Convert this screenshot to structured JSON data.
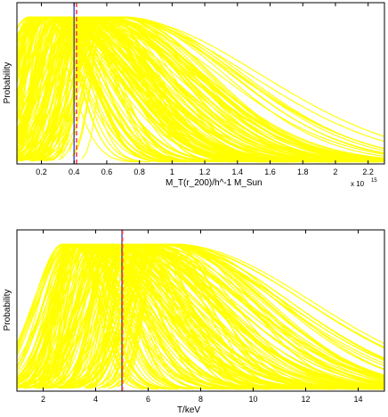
{
  "chart_data": [
    {
      "type": "line",
      "xlabel": "M_T(r_200)/h^-1 M_Sun",
      "ylabel": "Probability",
      "exponent_label": "x 10",
      "exponent_power": "15",
      "xlim": [
        0.05,
        2.3
      ],
      "ylim": [
        0,
        1
      ],
      "xticks": [
        0.2,
        0.4,
        0.6,
        0.8,
        1,
        1.2,
        1.4,
        1.6,
        1.8,
        2,
        2.2
      ],
      "xtick_labels": [
        "0.2",
        "0.4",
        "0.6",
        "0.8",
        "1",
        "1.2",
        "1.4",
        "1.6",
        "1.8",
        "2",
        "2.2"
      ],
      "curve_color": "#ffff00",
      "vertical_lines": [
        {
          "x": 0.4,
          "color": "#1f1fcf",
          "style": "solid"
        },
        {
          "x": 0.415,
          "color": "#ff4040",
          "style": "dashed"
        }
      ],
      "series_summary": {
        "count": 160,
        "peak_x_range": [
          0.18,
          0.66
        ],
        "tail_x_max": 2.25
      }
    },
    {
      "type": "line",
      "xlabel": "T/keV",
      "ylabel": "Probability",
      "xlim": [
        1,
        15
      ],
      "ylim": [
        0,
        1
      ],
      "xticks": [
        2,
        4,
        6,
        8,
        10,
        12,
        14
      ],
      "xtick_labels": [
        "2",
        "4",
        "6",
        "8",
        "10",
        "12",
        "14"
      ],
      "curve_color": "#ffff00",
      "vertical_lines": [
        {
          "x": 5.0,
          "color": "#1f1fcf",
          "style": "solid"
        },
        {
          "x": 5.02,
          "color": "#ff4040",
          "style": "dashed"
        }
      ],
      "series_summary": {
        "count": 160,
        "peak_x_range": [
          3.1,
          6.9
        ],
        "tail_x_max": 14.8
      }
    }
  ]
}
